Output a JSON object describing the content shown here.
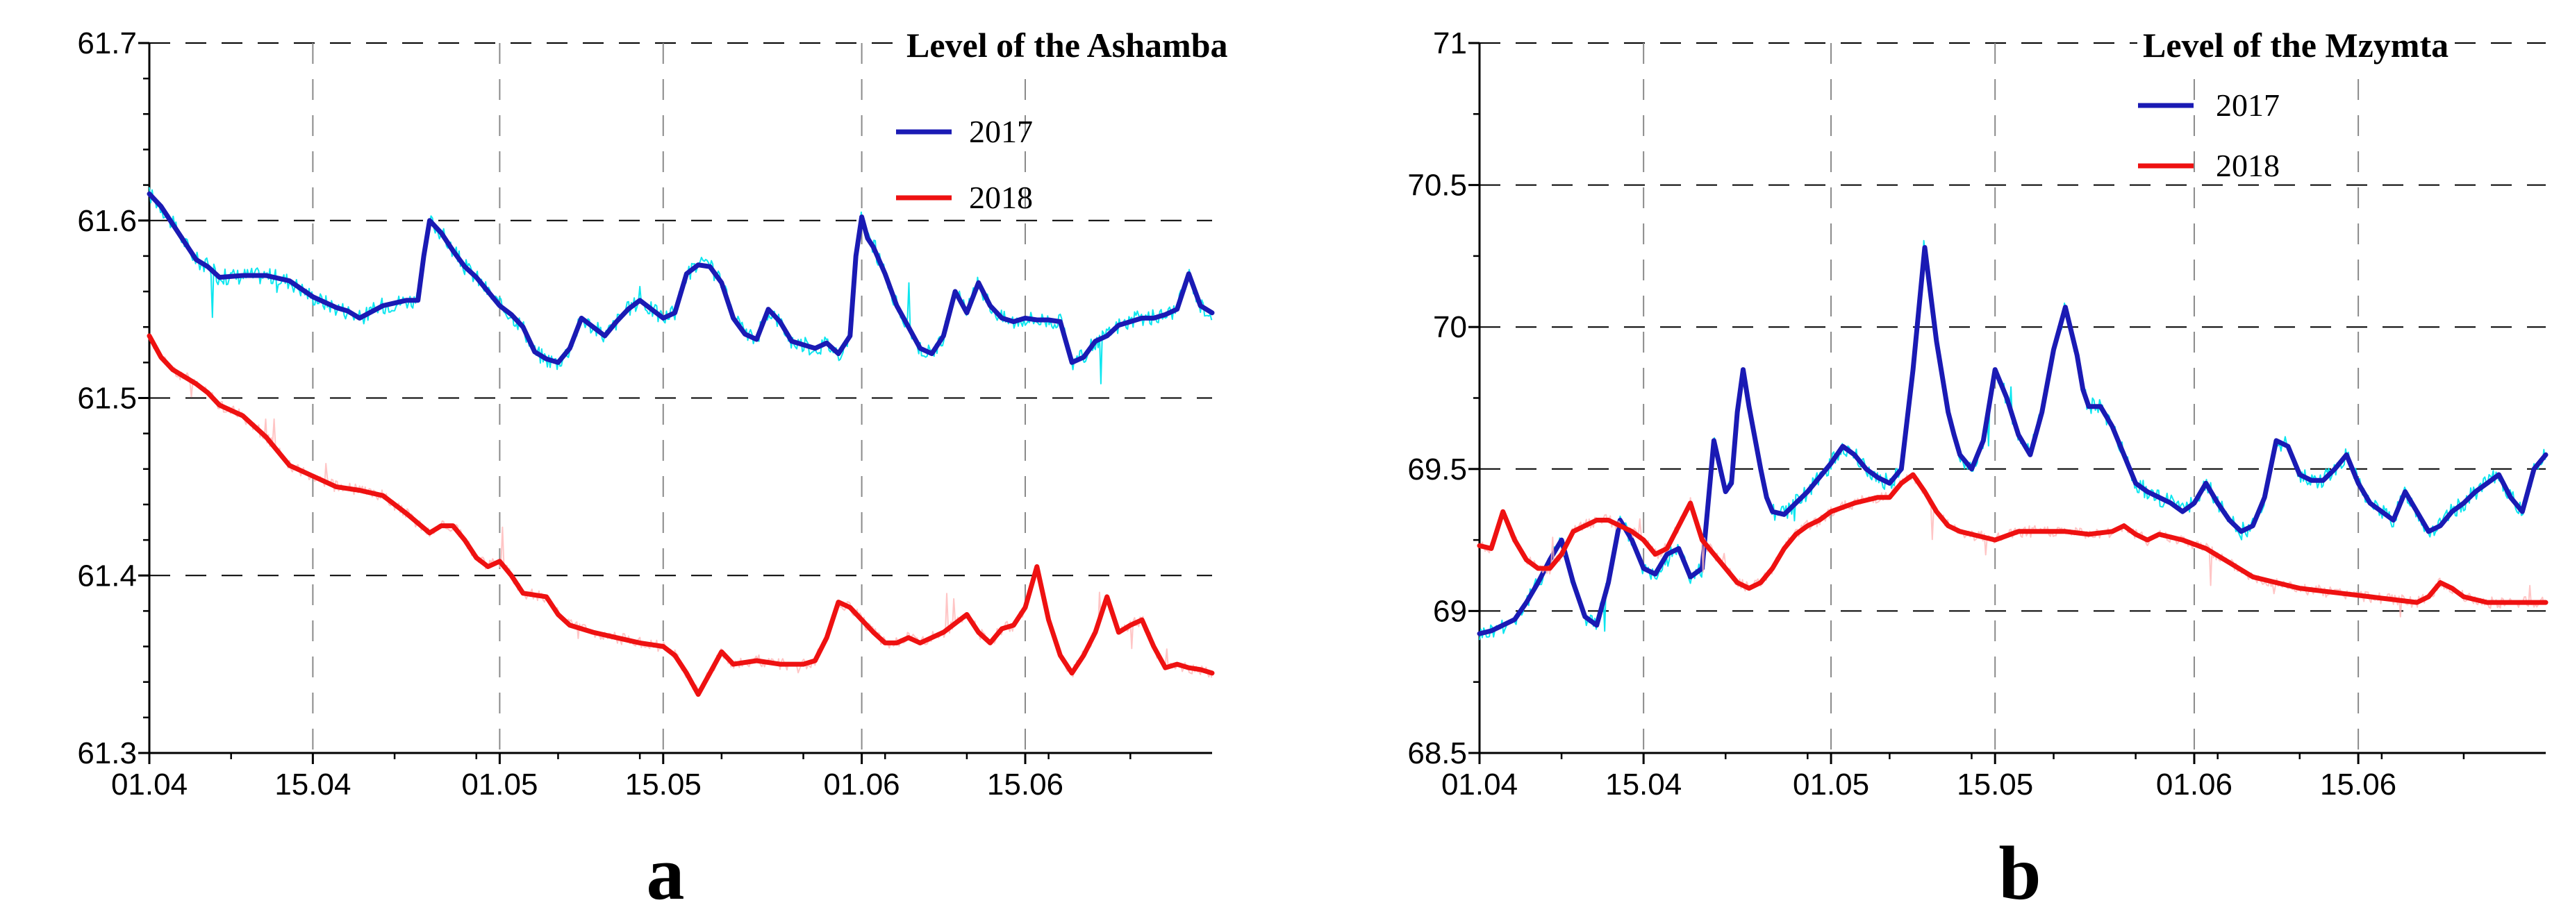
{
  "chart_data": [
    {
      "type": "line",
      "panel_label": "a",
      "title": "Level of the Ashamba",
      "xlabel": "",
      "ylabel": "",
      "x_ticks": [
        "01.04",
        "15.04",
        "01.05",
        "15.05",
        "01.06",
        "15.06"
      ],
      "x_tick_days": [
        0,
        14,
        30,
        44,
        61,
        75
      ],
      "xlim": [
        0,
        91
      ],
      "ylim": [
        61.3,
        61.7
      ],
      "y_ticks": [
        "61.3",
        "61.4",
        "61.5",
        "61.6",
        "61.7"
      ],
      "y_tick_values": [
        61.3,
        61.4,
        61.5,
        61.6,
        61.7
      ],
      "grid": true,
      "legend_position": "top-right",
      "series": [
        {
          "name": "2017",
          "color": "#1a1ab4",
          "raw_color": "#00e5ee",
          "x": [
            0,
            1,
            2,
            3,
            4,
            5,
            6,
            8,
            10,
            12,
            14,
            16,
            17,
            18,
            20,
            22,
            23,
            23.5,
            24,
            25,
            26,
            27,
            28,
            30,
            31,
            32,
            33,
            34,
            35,
            36,
            37,
            38,
            39,
            40,
            41,
            42,
            43,
            44,
            45,
            46,
            47,
            48,
            49,
            50,
            51,
            52,
            53,
            54,
            55,
            56,
            57,
            58,
            59,
            60,
            60.5,
            61,
            61.5,
            62,
            63,
            64,
            65,
            66,
            67,
            68,
            69,
            70,
            71,
            72,
            73,
            74,
            75,
            76,
            77,
            78,
            79,
            80,
            81,
            82,
            83,
            84,
            85,
            86,
            87,
            88,
            89,
            90,
            91
          ],
          "values": [
            61.615,
            61.608,
            61.598,
            61.588,
            61.578,
            61.574,
            61.568,
            61.569,
            61.569,
            61.566,
            61.557,
            61.551,
            61.549,
            61.545,
            61.552,
            61.555,
            61.555,
            61.58,
            61.6,
            61.593,
            61.583,
            61.574,
            61.568,
            61.552,
            61.547,
            61.54,
            61.526,
            61.522,
            61.52,
            61.528,
            61.545,
            61.54,
            61.535,
            61.543,
            61.55,
            61.555,
            61.55,
            61.545,
            61.548,
            61.57,
            61.575,
            61.574,
            61.565,
            61.545,
            61.536,
            61.533,
            61.55,
            61.543,
            61.532,
            61.53,
            61.528,
            61.531,
            61.525,
            61.535,
            61.58,
            61.602,
            61.59,
            61.585,
            61.57,
            61.552,
            61.54,
            61.528,
            61.525,
            61.535,
            61.56,
            61.548,
            61.565,
            61.552,
            61.545,
            61.543,
            61.545,
            61.544,
            61.544,
            61.543,
            61.52,
            61.523,
            61.532,
            61.535,
            61.541,
            61.543,
            61.545,
            61.545,
            61.547,
            61.55,
            61.57,
            61.552,
            61.548
          ]
        },
        {
          "name": "2018",
          "color": "#ee1111",
          "raw_color": "#ffb6b6",
          "x": [
            0,
            1,
            2,
            3,
            4,
            5,
            6,
            8,
            10,
            12,
            14,
            16,
            18,
            20,
            22,
            24,
            25,
            26,
            27,
            28,
            29,
            30,
            31,
            32,
            34,
            35,
            36,
            37,
            38,
            40,
            42,
            44,
            45,
            46,
            47,
            48,
            49,
            50,
            52,
            54,
            56,
            57,
            58,
            59,
            60,
            61,
            62,
            63,
            64,
            65,
            66,
            68,
            70,
            71,
            72,
            73,
            74,
            75,
            76,
            77,
            78,
            79,
            80,
            81,
            82,
            83,
            84,
            85,
            86,
            87,
            88,
            89,
            90,
            91
          ],
          "values": [
            61.535,
            61.523,
            61.516,
            61.512,
            61.508,
            61.503,
            61.496,
            61.49,
            61.478,
            61.462,
            61.456,
            61.45,
            61.448,
            61.445,
            61.435,
            61.424,
            61.428,
            61.428,
            61.42,
            61.41,
            61.405,
            61.408,
            61.4,
            61.39,
            61.388,
            61.378,
            61.372,
            61.37,
            61.368,
            61.365,
            61.362,
            61.36,
            61.355,
            61.345,
            61.333,
            61.345,
            61.357,
            61.35,
            61.352,
            61.35,
            61.35,
            61.352,
            61.365,
            61.385,
            61.382,
            61.375,
            61.368,
            61.362,
            61.362,
            61.365,
            61.362,
            61.368,
            61.378,
            61.368,
            61.362,
            61.37,
            61.372,
            61.382,
            61.405,
            61.375,
            61.355,
            61.345,
            61.355,
            61.368,
            61.388,
            61.368,
            61.372,
            61.375,
            61.36,
            61.348,
            61.35,
            61.348,
            61.347,
            61.345
          ]
        }
      ]
    },
    {
      "type": "line",
      "panel_label": "b",
      "title": "Level of the Mzymta",
      "xlabel": "",
      "ylabel": "",
      "x_ticks": [
        "01.04",
        "15.04",
        "01.05",
        "15.05",
        "01.06",
        "15.06"
      ],
      "x_tick_days": [
        0,
        14,
        30,
        44,
        61,
        75
      ],
      "xlim": [
        0,
        91
      ],
      "ylim": [
        68.5,
        71
      ],
      "y_ticks": [
        "68.5",
        "69",
        "69.5",
        "70",
        "70.5",
        "71"
      ],
      "y_tick_values": [
        68.5,
        69,
        69.5,
        70,
        70.5,
        71
      ],
      "grid": true,
      "legend_position": "top-right",
      "series": [
        {
          "name": "2017",
          "color": "#1a1ab4",
          "raw_color": "#00e5ee",
          "x": [
            0,
            1,
            2,
            3,
            4,
            5,
            6,
            7,
            8,
            9,
            10,
            11,
            12,
            13,
            14,
            15,
            16,
            17,
            18,
            19,
            20,
            21,
            21.5,
            22,
            22.5,
            23,
            24,
            24.5,
            25,
            26,
            27,
            28,
            29,
            30,
            31,
            32,
            33,
            34,
            35,
            36,
            37,
            38,
            39,
            40,
            40.5,
            41,
            42,
            43,
            44,
            45,
            46,
            47,
            48,
            49,
            50,
            51,
            51.5,
            52,
            53,
            54,
            55,
            56,
            57,
            58,
            59,
            60,
            61,
            62,
            63,
            64,
            65,
            66,
            67,
            68,
            69,
            70,
            71,
            72,
            73,
            74,
            75,
            76,
            77,
            78,
            79,
            80,
            81,
            82,
            83,
            84,
            85,
            86,
            87,
            88,
            89,
            90,
            91
          ],
          "values": [
            68.92,
            68.93,
            68.95,
            68.97,
            69.03,
            69.1,
            69.18,
            69.25,
            69.1,
            68.98,
            68.95,
            69.1,
            69.32,
            69.25,
            69.15,
            69.13,
            69.2,
            69.22,
            69.12,
            69.15,
            69.6,
            69.42,
            69.45,
            69.7,
            69.85,
            69.72,
            69.5,
            69.4,
            69.35,
            69.34,
            69.38,
            69.42,
            69.47,
            69.52,
            69.58,
            69.55,
            69.5,
            69.47,
            69.45,
            69.5,
            69.85,
            70.28,
            69.95,
            69.7,
            69.62,
            69.55,
            69.5,
            69.6,
            69.85,
            69.75,
            69.62,
            69.55,
            69.7,
            69.92,
            70.07,
            69.9,
            69.78,
            69.72,
            69.72,
            69.65,
            69.55,
            69.45,
            69.42,
            69.4,
            69.38,
            69.35,
            69.38,
            69.45,
            69.38,
            69.32,
            69.28,
            69.3,
            69.4,
            69.6,
            69.58,
            69.48,
            69.46,
            69.46,
            69.5,
            69.55,
            69.45,
            69.38,
            69.35,
            69.32,
            69.42,
            69.35,
            69.28,
            69.3,
            69.35,
            69.38,
            69.42,
            69.45,
            69.48,
            69.4,
            69.35,
            69.5,
            69.55
          ]
        },
        {
          "name": "2018",
          "color": "#ee1111",
          "raw_color": "#ffb6b6",
          "x": [
            0,
            1,
            2,
            3,
            4,
            5,
            6,
            7,
            8,
            9,
            10,
            11,
            12,
            13,
            14,
            15,
            16,
            17,
            18,
            19,
            20,
            21,
            22,
            23,
            24,
            25,
            26,
            27,
            28,
            29,
            30,
            32,
            34,
            35,
            36,
            37,
            38,
            39,
            40,
            41,
            42,
            44,
            46,
            48,
            50,
            52,
            54,
            55,
            56,
            57,
            58,
            60,
            62,
            64,
            66,
            68,
            70,
            72,
            74,
            76,
            78,
            80,
            81,
            82,
            83,
            84,
            85,
            86,
            87,
            88,
            89,
            90,
            91
          ],
          "values": [
            69.23,
            69.22,
            69.35,
            69.25,
            69.18,
            69.15,
            69.15,
            69.2,
            69.28,
            69.3,
            69.32,
            69.32,
            69.3,
            69.28,
            69.25,
            69.2,
            69.22,
            69.3,
            69.38,
            69.25,
            69.2,
            69.15,
            69.1,
            69.08,
            69.1,
            69.15,
            69.22,
            69.27,
            69.3,
            69.32,
            69.35,
            69.38,
            69.4,
            69.4,
            69.45,
            69.48,
            69.42,
            69.35,
            69.3,
            69.28,
            69.27,
            69.25,
            69.28,
            69.28,
            69.28,
            69.27,
            69.28,
            69.3,
            69.27,
            69.25,
            69.27,
            69.25,
            69.22,
            69.17,
            69.12,
            69.1,
            69.08,
            69.07,
            69.06,
            69.05,
            69.04,
            69.03,
            69.05,
            69.1,
            69.08,
            69.05,
            69.04,
            69.03,
            69.03,
            69.03,
            69.03,
            69.03,
            69.03
          ]
        }
      ]
    }
  ]
}
